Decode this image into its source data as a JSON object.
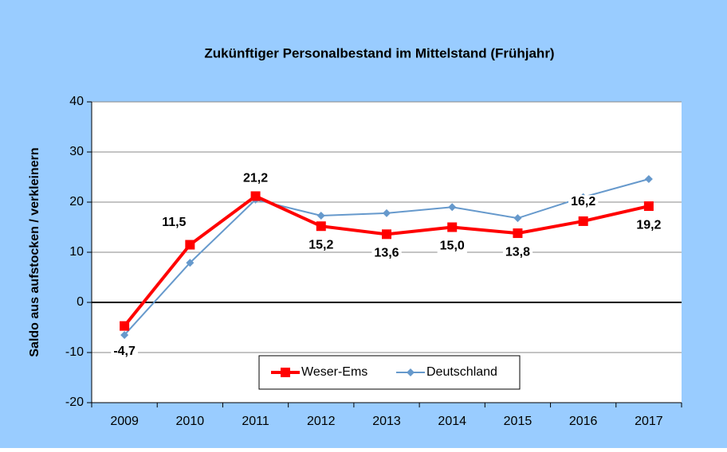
{
  "chart_data": {
    "type": "line",
    "title": "Zukünftiger Personalbestand im Mittelstand (Frühjahr)",
    "y_label": "Saldo aus aufstocken / verkleinern",
    "categories": [
      "2009",
      "2010",
      "2011",
      "2012",
      "2013",
      "2014",
      "2015",
      "2016",
      "2017"
    ],
    "series": [
      {
        "name": "Weser-Ems",
        "color": "#ff0000",
        "values": [
          -4.7,
          11.5,
          21.2,
          15.2,
          13.6,
          15.0,
          13.8,
          16.2,
          19.2
        ],
        "value_labels": [
          "-4,7",
          "11,5",
          "21,2",
          "15,2",
          "13,6",
          "15,0",
          "13,8",
          "16,2",
          "19,2"
        ]
      },
      {
        "name": "Deutschland",
        "color": "#6699cc",
        "values": [
          -6.5,
          7.9,
          20.5,
          17.3,
          17.8,
          19.0,
          16.8,
          21.0,
          24.6
        ]
      }
    ],
    "ylim": [
      -20,
      40
    ],
    "yticks": [
      -20,
      -10,
      0,
      10,
      20,
      30,
      40
    ],
    "grid": true
  }
}
